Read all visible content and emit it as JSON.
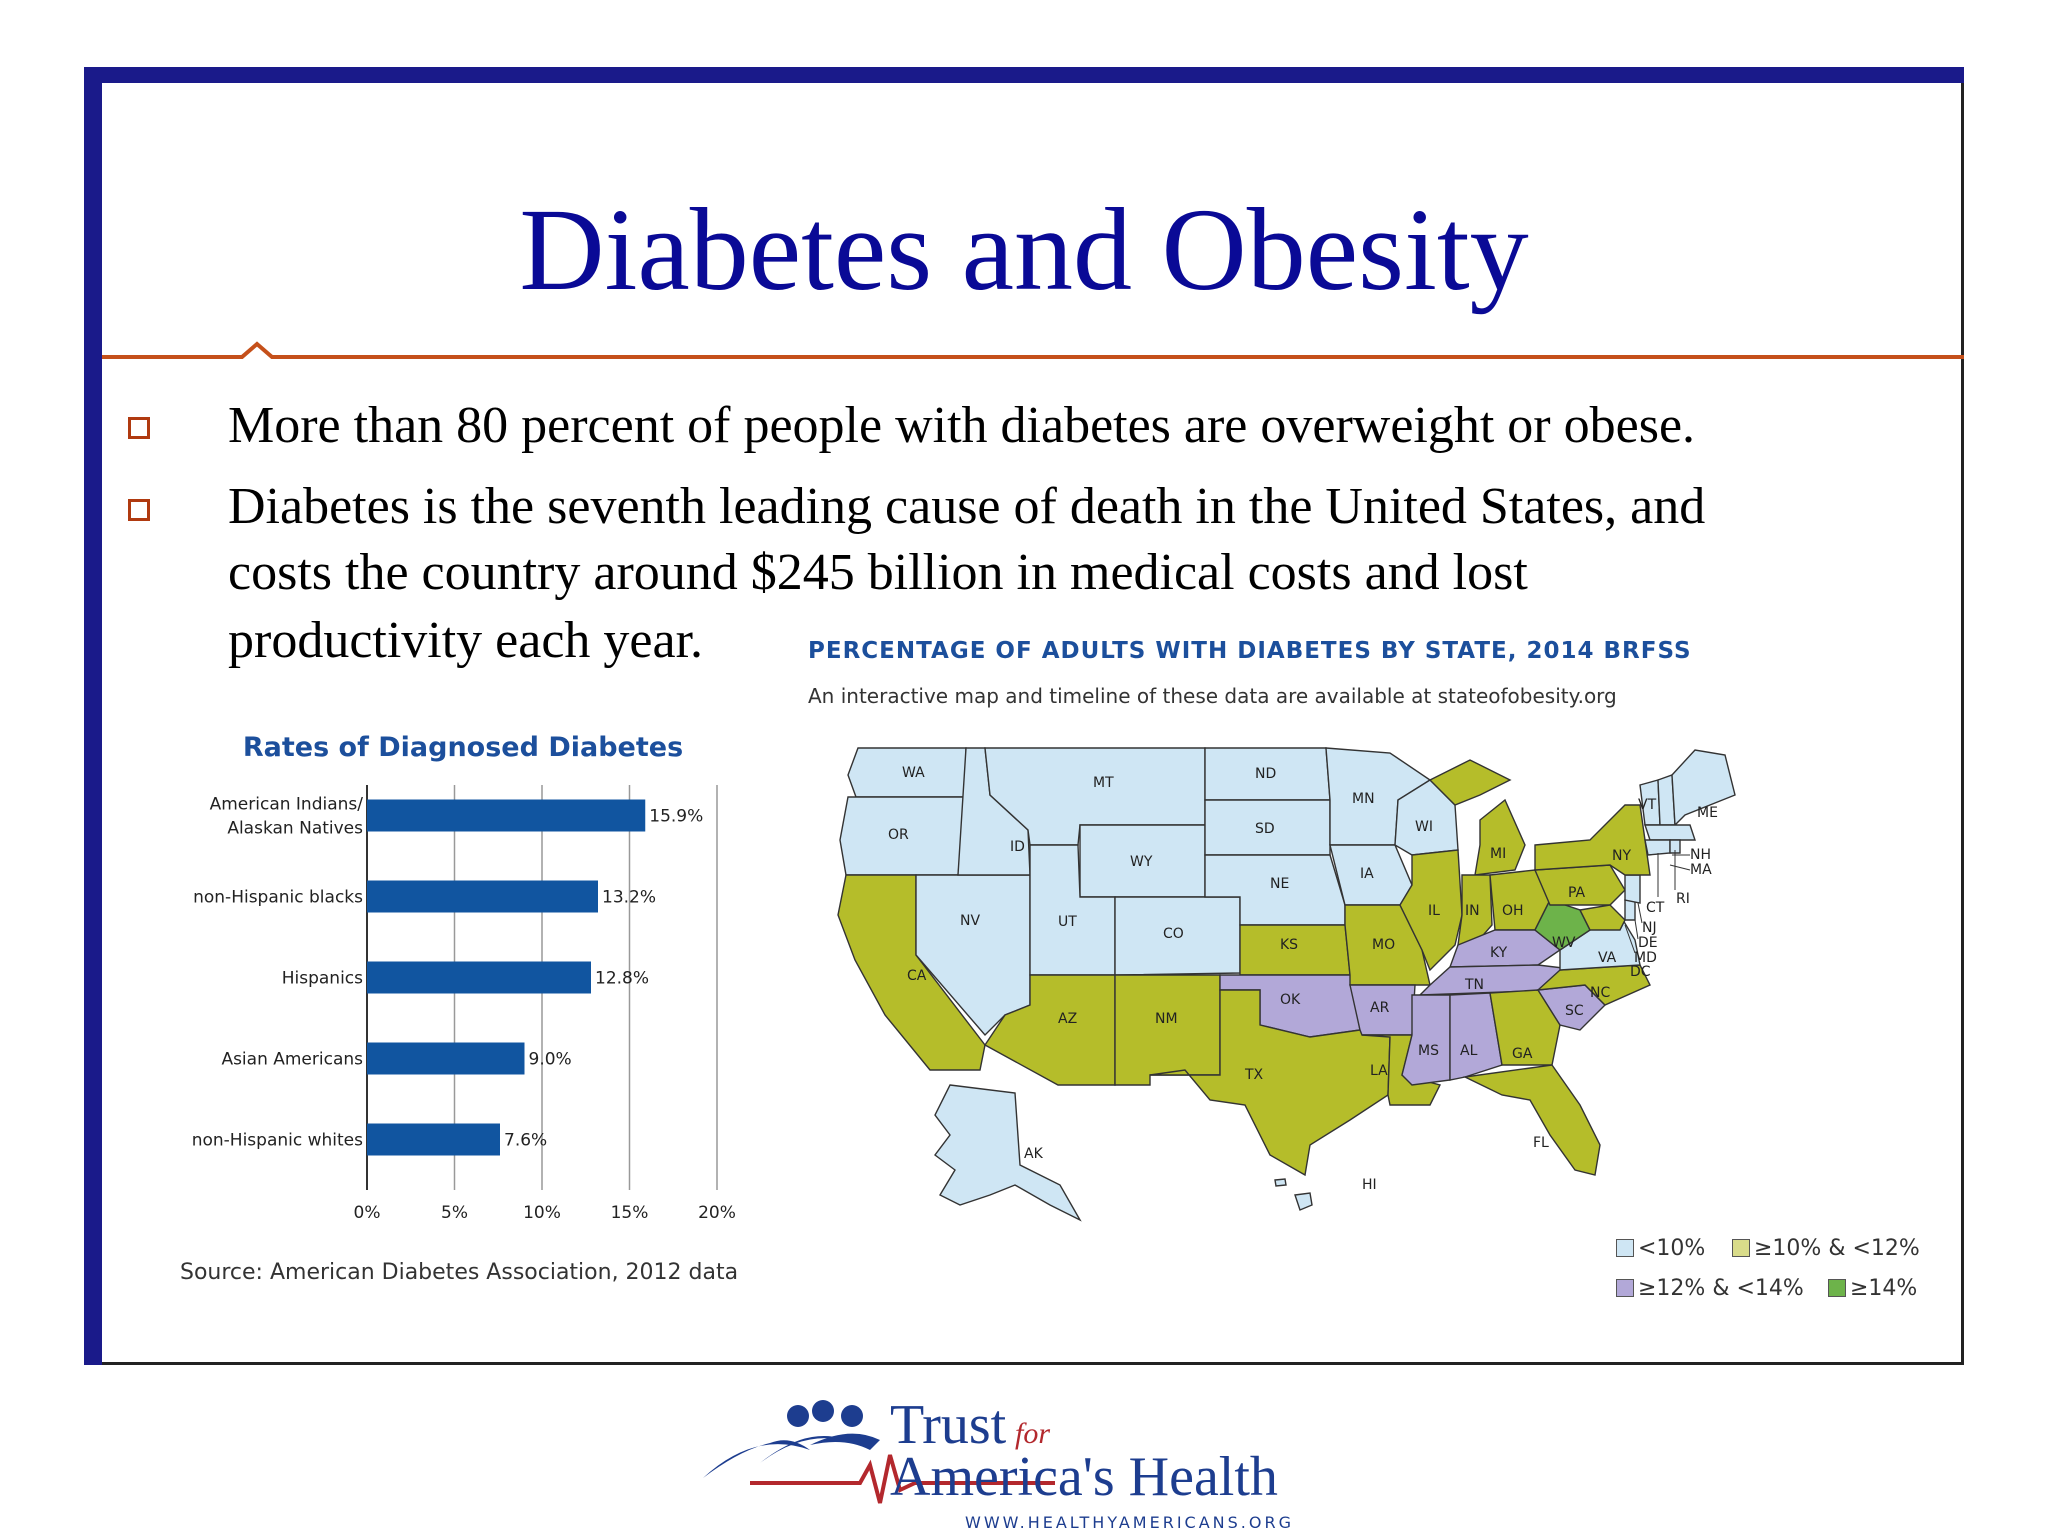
{
  "slide": {
    "title": "Diabetes and Obesity",
    "bullets": [
      {
        "lines": [
          "More than 80 percent of people with diabetes are overweight or obese."
        ]
      },
      {
        "lines": [
          "Diabetes is the seventh leading cause of death in the United States, and",
          "costs the country around $245 billion in medical costs and lost",
          "productivity each year."
        ]
      }
    ]
  },
  "chart_data": {
    "type": "bar",
    "orientation": "horizontal",
    "title": "Rates of Diagnosed Diabetes",
    "categories": [
      "American Indians/\nAlaskan Natives",
      "non-Hispanic blacks",
      "Hispanics",
      "Asian Americans",
      "non-Hispanic whites"
    ],
    "values": [
      15.9,
      13.2,
      12.8,
      9.0,
      7.6
    ],
    "value_labels": [
      "15.9%",
      "13.2%",
      "12.8%",
      "9.0%",
      "7.6%"
    ],
    "xlim": [
      0,
      20
    ],
    "x_ticks": [
      "0%",
      "5%",
      "10%",
      "15%",
      "20%"
    ],
    "grid": true,
    "bar_color": "#1155a0",
    "source": "Source: American Diabetes Association, 2012 data"
  },
  "map": {
    "heading": "PERCENTAGE OF ADULTS WITH DIABETES BY STATE, 2014 BRFSS",
    "subheading": "An interactive map and timeline of these data are available at stateofobesity.org",
    "colors": {
      "lt10": "#cfe6f4",
      "10to12": "#b5bd2a",
      "12to14": "#b2a8d8",
      "ge14": "#6db34a"
    },
    "legend": [
      {
        "label": "<10%",
        "color": "#cfe6f4"
      },
      {
        "label": "≥10% & <12%",
        "color": "#d9dc8a"
      },
      {
        "label": "≥12% & <14%",
        "color": "#b2a8d8"
      },
      {
        "label": "≥14%",
        "color": "#6db34a"
      }
    ],
    "state_labels": [
      "WA",
      "OR",
      "CA",
      "NV",
      "ID",
      "MT",
      "WY",
      "UT",
      "CO",
      "AZ",
      "NM",
      "ND",
      "SD",
      "NE",
      "KS",
      "OK",
      "TX",
      "MN",
      "IA",
      "MO",
      "AR",
      "LA",
      "WI",
      "IL",
      "MS",
      "MI",
      "IN",
      "KY",
      "TN",
      "AL",
      "OH",
      "WV",
      "GA",
      "FL",
      "SC",
      "NC",
      "VA",
      "PA",
      "NY",
      "VT",
      "NH",
      "ME",
      "MA",
      "RI",
      "CT",
      "NJ",
      "DE",
      "MD",
      "DC",
      "AK",
      "HI"
    ]
  },
  "logo": {
    "line1": "Trust",
    "for": "for",
    "line2": "America's Health",
    "url": "WWW.HEALTHYAMERICANS.ORG"
  }
}
